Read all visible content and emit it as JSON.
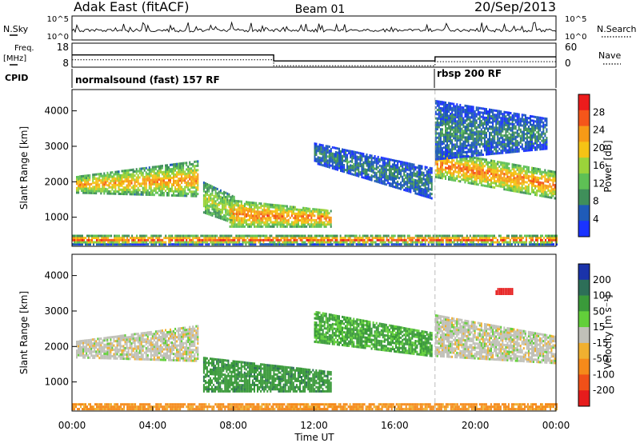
{
  "header": {
    "station": "Adak East (fitACF)",
    "beam": "Beam 01",
    "date": "20/Sep/2013"
  },
  "strip_labels": {
    "nsky": "N.Sky",
    "freq_line1": "Freq.",
    "freq_line2": "[MHz]",
    "cpid": "CPID",
    "nsearch": "N.Search",
    "nave": "Nave"
  },
  "strip_ticks": {
    "nsky_top": "10^5",
    "nsky_bottom": "10^0",
    "nsearch_top": "10^5",
    "nsearch_bottom": "10^0",
    "freq_top": "18",
    "freq_bottom": "8",
    "nave_top": "60",
    "nave_bottom": "0"
  },
  "cpid_segments": [
    {
      "label": "normalsound (fast) 157 RF",
      "start_h": 0,
      "end_h": 18
    },
    {
      "label": "rbsp 200 RF",
      "start_h": 18,
      "end_h": 24
    }
  ],
  "x_axis": {
    "title": "Time UT",
    "ticks": [
      "00:00",
      "04:00",
      "08:00",
      "12:00",
      "16:00",
      "20:00",
      "00:00"
    ]
  },
  "power_colorbar": {
    "title": "Power [dB]",
    "ticks": [
      "28",
      "24",
      "20",
      "16",
      "12",
      "8",
      "4"
    ]
  },
  "velocity_colorbar": {
    "title": "Velocity [m s⁻¹]",
    "ticks": [
      "200",
      "100",
      "50",
      "15",
      "-15",
      "-50",
      "-100",
      "-200"
    ]
  },
  "chart_data": [
    {
      "type": "line",
      "panel": "frequency",
      "x_unit": "hours UT",
      "y_range_mhz": [
        8,
        18
      ],
      "series": [
        {
          "x": [
            0,
            10,
            10,
            18,
            18,
            24
          ],
          "y": [
            13.1,
            13.1,
            10.6,
            10.6,
            12.3,
            12.3
          ]
        }
      ]
    },
    {
      "type": "heatmap",
      "panel": "power",
      "ylabel": "Slant Range [km]",
      "xlabel": "Time UT",
      "xlim_hours": [
        0,
        24
      ],
      "ylim_km": [
        180,
        4600
      ],
      "yticks": [
        1000,
        2000,
        3000,
        4000
      ],
      "colorscale_db": [
        0,
        30
      ],
      "regions": [
        {
          "x": [
            0.2,
            6.2
          ],
          "y0": [
            1660,
            1560
          ],
          "y1": [
            2160,
            2600
          ],
          "level_db": [
            8,
            22
          ]
        },
        {
          "x": [
            6.5,
            8.0
          ],
          "y0": [
            1100,
            800
          ],
          "y1": [
            2000,
            1600
          ],
          "level_db": [
            8,
            16
          ]
        },
        {
          "x": [
            7.8,
            12.8
          ],
          "y0": [
            700,
            700
          ],
          "y1": [
            1500,
            1200
          ],
          "level_db": [
            10,
            24
          ]
        },
        {
          "x": [
            12.0,
            17.8
          ],
          "y0": [
            2500,
            1500
          ],
          "y1": [
            3100,
            2400
          ],
          "level_db": [
            3,
            8
          ]
        },
        {
          "x": [
            18.0,
            23.9
          ],
          "y0": [
            2100,
            1500
          ],
          "y1": [
            2900,
            2300
          ],
          "level_db": [
            10,
            24
          ]
        },
        {
          "x": [
            18.0,
            23.5
          ],
          "y0": [
            2600,
            2900
          ],
          "y1": [
            4300,
            3800
          ],
          "level_db": [
            3,
            8
          ]
        },
        {
          "x": [
            0.0,
            24.0
          ],
          "y0": [
            200,
            200
          ],
          "y1": [
            500,
            500
          ],
          "level_db": [
            2,
            28
          ]
        }
      ]
    },
    {
      "type": "heatmap",
      "panel": "velocity",
      "ylabel": "Slant Range [km]",
      "xlabel": "Time UT",
      "xlim_hours": [
        0,
        24
      ],
      "ylim_km": [
        180,
        4600
      ],
      "yticks": [
        1000,
        2000,
        3000,
        4000
      ],
      "colorscale_ms": [
        -200,
        200
      ],
      "regions": [
        {
          "x": [
            0.2,
            6.2
          ],
          "y0": [
            1660,
            1560
          ],
          "y1": [
            2160,
            2600
          ],
          "velocity_ms": 0
        },
        {
          "x": [
            6.5,
            12.8
          ],
          "y0": [
            700,
            700
          ],
          "y1": [
            1700,
            1300
          ],
          "velocity_ms": 60
        },
        {
          "x": [
            12.0,
            17.8
          ],
          "y0": [
            2100,
            1700
          ],
          "y1": [
            3000,
            2400
          ],
          "velocity_ms": 40
        },
        {
          "x": [
            18.0,
            23.9
          ],
          "y0": [
            1700,
            1500
          ],
          "y1": [
            2900,
            2300
          ],
          "velocity_ms": 0
        },
        {
          "x": [
            21.0,
            21.8
          ],
          "y0": [
            3450,
            3450
          ],
          "y1": [
            3650,
            3650
          ],
          "velocity_ms": -220
        },
        {
          "x": [
            0.0,
            24.0
          ],
          "y0": [
            200,
            200
          ],
          "y1": [
            400,
            400
          ],
          "velocity_ms": -60
        }
      ]
    }
  ]
}
